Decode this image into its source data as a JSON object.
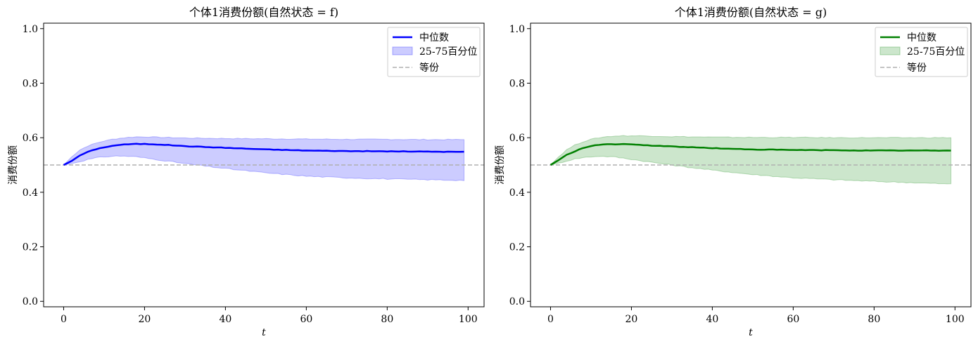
{
  "chart_data": [
    {
      "type": "line",
      "title": "个体1消费份额(自然状态 = f)",
      "xlabel": "t",
      "ylabel": "消费份额",
      "xlim": [
        -4.95,
        103.95
      ],
      "ylim": [
        -0.02,
        1.02
      ],
      "xticks": [
        0,
        20,
        40,
        60,
        80,
        100
      ],
      "yticks": [
        0.0,
        0.2,
        0.4,
        0.6,
        0.8,
        1.0
      ],
      "xtick_labels": [
        "0",
        "20",
        "40",
        "60",
        "80",
        "100"
      ],
      "ytick_labels": [
        "0.0",
        "0.2",
        "0.4",
        "0.6",
        "0.8",
        "1.0"
      ],
      "grid": false,
      "legend_position": "top-right",
      "colors": {
        "median": "#0000ff",
        "band": "#0000ff",
        "equal": "#b0b0b0"
      },
      "legend": [
        "中位数",
        "25-75百分位",
        "等份"
      ],
      "median_knots": [
        [
          0,
          0.5
        ],
        [
          2,
          0.515
        ],
        [
          4,
          0.535
        ],
        [
          6,
          0.548
        ],
        [
          8,
          0.558
        ],
        [
          10,
          0.565
        ],
        [
          12,
          0.57
        ],
        [
          14,
          0.574
        ],
        [
          16,
          0.576
        ],
        [
          18,
          0.577
        ],
        [
          20,
          0.577
        ],
        [
          22,
          0.576
        ],
        [
          24,
          0.575
        ],
        [
          26,
          0.573
        ],
        [
          28,
          0.571
        ],
        [
          30,
          0.569
        ],
        [
          35,
          0.566
        ],
        [
          40,
          0.563
        ],
        [
          45,
          0.56
        ],
        [
          50,
          0.557
        ],
        [
          55,
          0.555
        ],
        [
          60,
          0.553
        ],
        [
          70,
          0.551
        ],
        [
          80,
          0.55
        ],
        [
          90,
          0.549
        ],
        [
          99,
          0.548
        ]
      ],
      "upper_knots": [
        [
          0,
          0.5
        ],
        [
          2,
          0.53
        ],
        [
          4,
          0.555
        ],
        [
          6,
          0.57
        ],
        [
          8,
          0.58
        ],
        [
          10,
          0.588
        ],
        [
          12,
          0.594
        ],
        [
          14,
          0.598
        ],
        [
          16,
          0.601
        ],
        [
          18,
          0.603
        ],
        [
          20,
          0.603
        ],
        [
          25,
          0.601
        ],
        [
          30,
          0.599
        ],
        [
          40,
          0.597
        ],
        [
          50,
          0.596
        ],
        [
          60,
          0.595
        ],
        [
          70,
          0.594
        ],
        [
          80,
          0.594
        ],
        [
          90,
          0.593
        ],
        [
          99,
          0.593
        ]
      ],
      "lower_knots": [
        [
          0,
          0.5
        ],
        [
          2,
          0.505
        ],
        [
          4,
          0.513
        ],
        [
          6,
          0.52
        ],
        [
          8,
          0.526
        ],
        [
          10,
          0.53
        ],
        [
          12,
          0.532
        ],
        [
          14,
          0.533
        ],
        [
          16,
          0.532
        ],
        [
          18,
          0.53
        ],
        [
          20,
          0.526
        ],
        [
          25,
          0.516
        ],
        [
          30,
          0.505
        ],
        [
          35,
          0.496
        ],
        [
          40,
          0.487
        ],
        [
          45,
          0.479
        ],
        [
          50,
          0.471
        ],
        [
          55,
          0.465
        ],
        [
          60,
          0.459
        ],
        [
          70,
          0.453
        ],
        [
          80,
          0.449
        ],
        [
          90,
          0.446
        ],
        [
          99,
          0.444
        ]
      ],
      "equal_share": 0.5
    },
    {
      "type": "line",
      "title": "个体1消费份额(自然状态 = g)",
      "xlabel": "t",
      "ylabel": "消费份额",
      "xlim": [
        -4.95,
        103.95
      ],
      "ylim": [
        -0.02,
        1.02
      ],
      "xticks": [
        0,
        20,
        40,
        60,
        80,
        100
      ],
      "yticks": [
        0.0,
        0.2,
        0.4,
        0.6,
        0.8,
        1.0
      ],
      "xtick_labels": [
        "0",
        "20",
        "40",
        "60",
        "80",
        "100"
      ],
      "ytick_labels": [
        "0.0",
        "0.2",
        "0.4",
        "0.6",
        "0.8",
        "1.0"
      ],
      "grid": false,
      "legend_position": "top-right",
      "colors": {
        "median": "#008000",
        "band": "#008000",
        "equal": "#b0b0b0"
      },
      "legend": [
        "中位数",
        "25-75百分位",
        "等份"
      ],
      "median_knots": [
        [
          0,
          0.5
        ],
        [
          2,
          0.518
        ],
        [
          4,
          0.537
        ],
        [
          6,
          0.55
        ],
        [
          8,
          0.562
        ],
        [
          10,
          0.57
        ],
        [
          12,
          0.574
        ],
        [
          14,
          0.576
        ],
        [
          16,
          0.576
        ],
        [
          18,
          0.576
        ],
        [
          20,
          0.575
        ],
        [
          22,
          0.574
        ],
        [
          24,
          0.572
        ],
        [
          26,
          0.57
        ],
        [
          28,
          0.569
        ],
        [
          30,
          0.568
        ],
        [
          35,
          0.565
        ],
        [
          40,
          0.562
        ],
        [
          45,
          0.559
        ],
        [
          50,
          0.557
        ],
        [
          55,
          0.556
        ],
        [
          60,
          0.555
        ],
        [
          70,
          0.554
        ],
        [
          80,
          0.553
        ],
        [
          90,
          0.553
        ],
        [
          99,
          0.553
        ]
      ],
      "upper_knots": [
        [
          0,
          0.5
        ],
        [
          2,
          0.53
        ],
        [
          4,
          0.556
        ],
        [
          6,
          0.573
        ],
        [
          8,
          0.585
        ],
        [
          10,
          0.594
        ],
        [
          12,
          0.6
        ],
        [
          14,
          0.604
        ],
        [
          16,
          0.606
        ],
        [
          18,
          0.607
        ],
        [
          20,
          0.607
        ],
        [
          25,
          0.606
        ],
        [
          30,
          0.604
        ],
        [
          40,
          0.602
        ],
        [
          50,
          0.601
        ],
        [
          60,
          0.601
        ],
        [
          70,
          0.6
        ],
        [
          80,
          0.6
        ],
        [
          90,
          0.6
        ],
        [
          99,
          0.6
        ]
      ],
      "lower_knots": [
        [
          0,
          0.5
        ],
        [
          2,
          0.507
        ],
        [
          4,
          0.515
        ],
        [
          6,
          0.522
        ],
        [
          8,
          0.527
        ],
        [
          10,
          0.53
        ],
        [
          12,
          0.532
        ],
        [
          14,
          0.531
        ],
        [
          16,
          0.529
        ],
        [
          18,
          0.525
        ],
        [
          20,
          0.521
        ],
        [
          25,
          0.51
        ],
        [
          30,
          0.5
        ],
        [
          35,
          0.49
        ],
        [
          40,
          0.481
        ],
        [
          45,
          0.473
        ],
        [
          50,
          0.465
        ],
        [
          55,
          0.459
        ],
        [
          60,
          0.453
        ],
        [
          70,
          0.446
        ],
        [
          80,
          0.44
        ],
        [
          90,
          0.435
        ],
        [
          99,
          0.43
        ]
      ],
      "equal_share": 0.5
    }
  ]
}
